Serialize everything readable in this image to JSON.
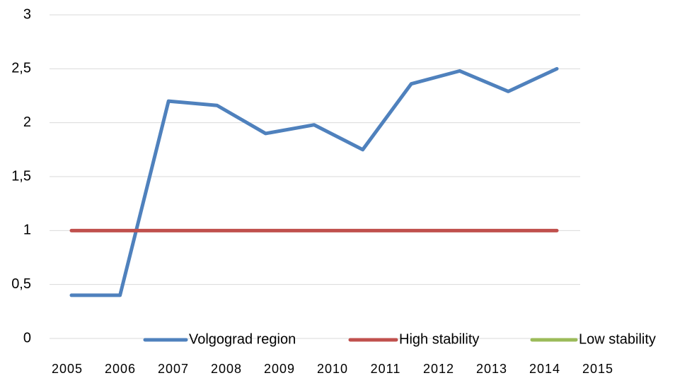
{
  "chart_data": {
    "type": "line",
    "categories": [
      "2005",
      "2006",
      "2007",
      "2008",
      "2009",
      "2010",
      "2011",
      "2012",
      "2013",
      "2014",
      "2015"
    ],
    "series": [
      {
        "name": "Volgograd region",
        "color": "#4f81bd",
        "values": [
          0.4,
          0.4,
          2.2,
          2.16,
          1.9,
          1.98,
          1.75,
          2.36,
          2.48,
          2.29,
          2.5
        ]
      },
      {
        "name": "High stability",
        "color": "#c0504d",
        "values": [
          1,
          1,
          1,
          1,
          1,
          1,
          1,
          1,
          1,
          1,
          1
        ]
      },
      {
        "name": "Low stability",
        "color": "#9bbb59",
        "values": [
          null,
          null,
          null,
          null,
          null,
          null,
          null,
          null,
          null,
          null,
          null
        ]
      }
    ],
    "ylim": [
      0,
      3
    ],
    "yticks": [
      0,
      {
        "value": 0.5,
        "label": "0,5"
      },
      1,
      {
        "value": 1.5,
        "label": "1,5"
      },
      2,
      {
        "value": 2.5,
        "label": "2,5"
      },
      3
    ],
    "grid": true,
    "legend": "bottom"
  }
}
